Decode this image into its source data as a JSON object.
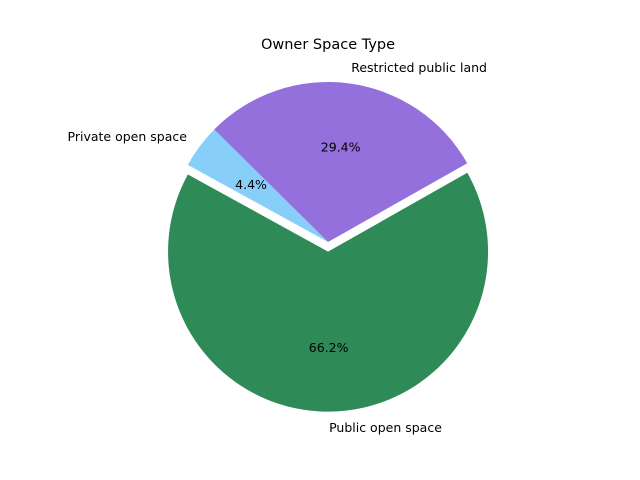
{
  "chart_data": {
    "type": "pie",
    "title": "Owner Space Type",
    "slices": [
      {
        "label": "Restricted public land",
        "value": 29.4,
        "pct_label": "29.4%",
        "color": "#9370db",
        "exploded": false
      },
      {
        "label": "Private open space",
        "value": 4.4,
        "pct_label": "4.4%",
        "color": "#87cefa",
        "exploded": false
      },
      {
        "label": "Public open space",
        "value": 66.2,
        "pct_label": "66.2%",
        "color": "#2e8b57",
        "exploded": true
      }
    ]
  }
}
